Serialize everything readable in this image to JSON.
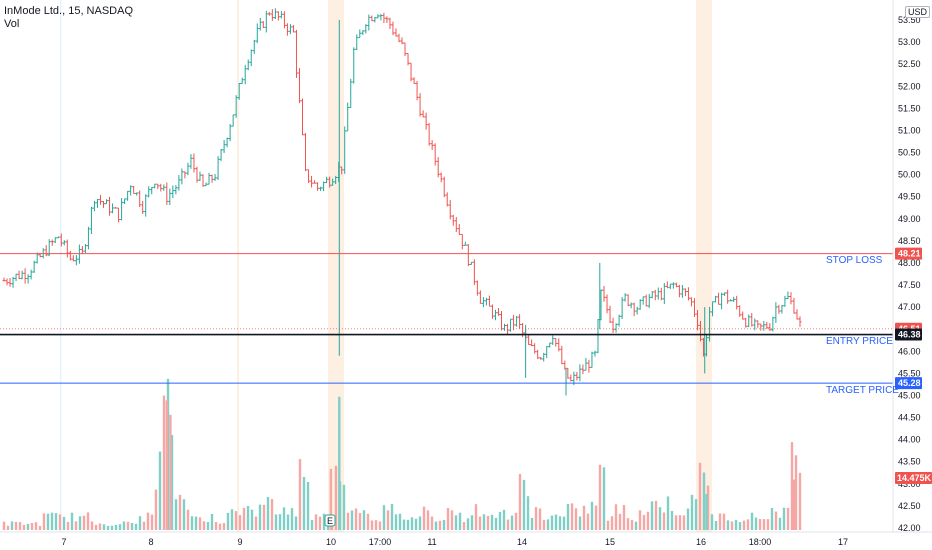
{
  "header": {
    "symbol": "InMode Ltd., 15, NASDAQ",
    "vol_label": "Vol",
    "currency": "USD"
  },
  "colors": {
    "up": "#26a69a",
    "down": "#ef5350",
    "vol_up": "#7fcfc7",
    "vol_down": "#f4a7a5",
    "stop_loss": "#ef5350",
    "entry": "#131722",
    "target": "#2962ff",
    "last_price": "#ef5350",
    "volume_badge": "#ef5350",
    "session_shade": "#fdebd9"
  },
  "annotations": {
    "stop_loss": "STOP LOSS",
    "entry_price": "ENTRY PRICE",
    "target_price": "TARGET PRICE",
    "earnings_icon": "E"
  },
  "chart_data": {
    "type": "candlestick",
    "x_tick_labels": [
      "7",
      "8",
      "9",
      "10",
      "17:00",
      "11",
      "14",
      "15",
      "16",
      "18:00",
      "17"
    ],
    "y_tick_labels": [
      "53.50",
      "53.00",
      "52.50",
      "52.00",
      "51.50",
      "51.00",
      "50.50",
      "50.00",
      "49.50",
      "49.00",
      "48.50",
      "48.00",
      "47.50",
      "47.00",
      "46.50",
      "46.00",
      "45.50",
      "45.00",
      "44.50",
      "44.00",
      "43.50",
      "43.00",
      "42.50",
      "42.00"
    ],
    "ylim": [
      41.9,
      53.75
    ],
    "horizontal_lines": [
      {
        "name": "STOP LOSS",
        "price": 48.21,
        "label": "48.21"
      },
      {
        "name": "ENTRY PRICE",
        "price": 46.38,
        "label": "46.38"
      },
      {
        "name": "TARGET PRICE",
        "price": 45.28,
        "label": "45.28"
      }
    ],
    "last_price": {
      "price": 46.51,
      "label": "46.51"
    },
    "volume_last": {
      "label": "14.475K"
    },
    "close_path": [
      [
        0,
        47.6
      ],
      [
        4,
        47.8
      ],
      [
        7,
        48.3
      ],
      [
        9,
        48.6
      ],
      [
        11,
        48.1
      ],
      [
        13,
        48.2
      ],
      [
        15,
        49.5
      ],
      [
        17,
        49.3
      ],
      [
        19,
        49.1
      ],
      [
        21,
        49.8
      ],
      [
        23,
        49.3
      ],
      [
        25,
        49.9
      ],
      [
        27,
        49.5
      ],
      [
        29,
        49.8
      ],
      [
        31,
        50.3
      ],
      [
        33,
        49.7
      ],
      [
        35,
        50.0
      ],
      [
        38,
        51.4
      ],
      [
        40,
        52.5
      ],
      [
        42,
        53.2
      ],
      [
        44,
        53.7
      ],
      [
        46,
        53.5
      ],
      [
        48,
        53.2
      ],
      [
        50,
        50.0
      ],
      [
        52,
        49.7
      ],
      [
        54,
        49.9
      ],
      [
        56,
        50.2
      ],
      [
        58,
        52.8
      ],
      [
        60,
        53.5
      ],
      [
        62,
        53.7
      ],
      [
        64,
        53.4
      ],
      [
        66,
        52.9
      ],
      [
        68,
        52.0
      ],
      [
        70,
        51.0
      ],
      [
        72,
        50.1
      ],
      [
        74,
        49.2
      ],
      [
        76,
        48.5
      ],
      [
        77,
        48.1
      ],
      [
        79,
        47.2
      ],
      [
        81,
        46.9
      ],
      [
        83,
        46.5
      ],
      [
        85,
        46.7
      ],
      [
        87,
        46.1
      ],
      [
        89,
        45.9
      ],
      [
        91,
        46.4
      ],
      [
        93,
        45.5
      ],
      [
        94,
        45.3
      ],
      [
        96,
        45.6
      ],
      [
        98,
        45.9
      ],
      [
        99,
        47.3
      ],
      [
        101,
        46.6
      ],
      [
        103,
        47.2
      ],
      [
        105,
        47.0
      ],
      [
        107,
        47.2
      ],
      [
        109,
        47.3
      ],
      [
        111,
        47.5
      ],
      [
        113,
        47.3
      ],
      [
        114,
        47.1
      ],
      [
        115,
        46.7
      ],
      [
        116,
        45.9
      ],
      [
        117,
        46.9
      ],
      [
        119,
        47.3
      ],
      [
        121,
        47.1
      ],
      [
        123,
        46.7
      ],
      [
        125,
        46.5
      ],
      [
        127,
        46.6
      ],
      [
        128,
        47.0
      ],
      [
        130,
        47.2
      ],
      [
        131,
        47.0
      ],
      [
        132,
        46.6
      ]
    ],
    "volumes": [
      [
        0,
        1
      ],
      [
        4,
        1
      ],
      [
        8,
        2
      ],
      [
        12,
        2
      ],
      [
        16,
        1
      ],
      [
        20,
        1
      ],
      [
        24,
        2
      ],
      [
        26,
        10
      ],
      [
        27,
        18
      ],
      [
        30,
        4
      ],
      [
        32,
        2
      ],
      [
        34,
        2
      ],
      [
        36,
        1
      ],
      [
        38,
        4
      ],
      [
        40,
        3
      ],
      [
        42,
        3
      ],
      [
        44,
        4
      ],
      [
        46,
        3
      ],
      [
        48,
        3
      ],
      [
        50,
        9
      ],
      [
        51,
        2
      ],
      [
        53,
        2
      ],
      [
        54,
        3
      ],
      [
        55,
        16
      ],
      [
        56,
        6
      ],
      [
        58,
        4
      ],
      [
        60,
        3
      ],
      [
        62,
        2
      ],
      [
        64,
        3
      ],
      [
        66,
        2
      ],
      [
        68,
        2
      ],
      [
        70,
        3
      ],
      [
        72,
        2
      ],
      [
        74,
        3
      ],
      [
        76,
        2
      ],
      [
        78,
        3
      ],
      [
        80,
        2
      ],
      [
        82,
        3
      ],
      [
        84,
        2
      ],
      [
        86,
        7
      ],
      [
        88,
        3
      ],
      [
        90,
        2
      ],
      [
        92,
        2
      ],
      [
        94,
        3
      ],
      [
        96,
        3
      ],
      [
        98,
        4
      ],
      [
        99,
        8
      ],
      [
        100,
        2
      ],
      [
        102,
        3
      ],
      [
        104,
        2
      ],
      [
        106,
        3
      ],
      [
        108,
        4
      ],
      [
        110,
        4
      ],
      [
        112,
        3
      ],
      [
        114,
        4
      ],
      [
        116,
        9
      ],
      [
        118,
        2
      ],
      [
        120,
        2
      ],
      [
        122,
        2
      ],
      [
        124,
        2
      ],
      [
        126,
        2
      ],
      [
        128,
        3
      ],
      [
        130,
        3
      ],
      [
        131,
        10
      ]
    ]
  }
}
